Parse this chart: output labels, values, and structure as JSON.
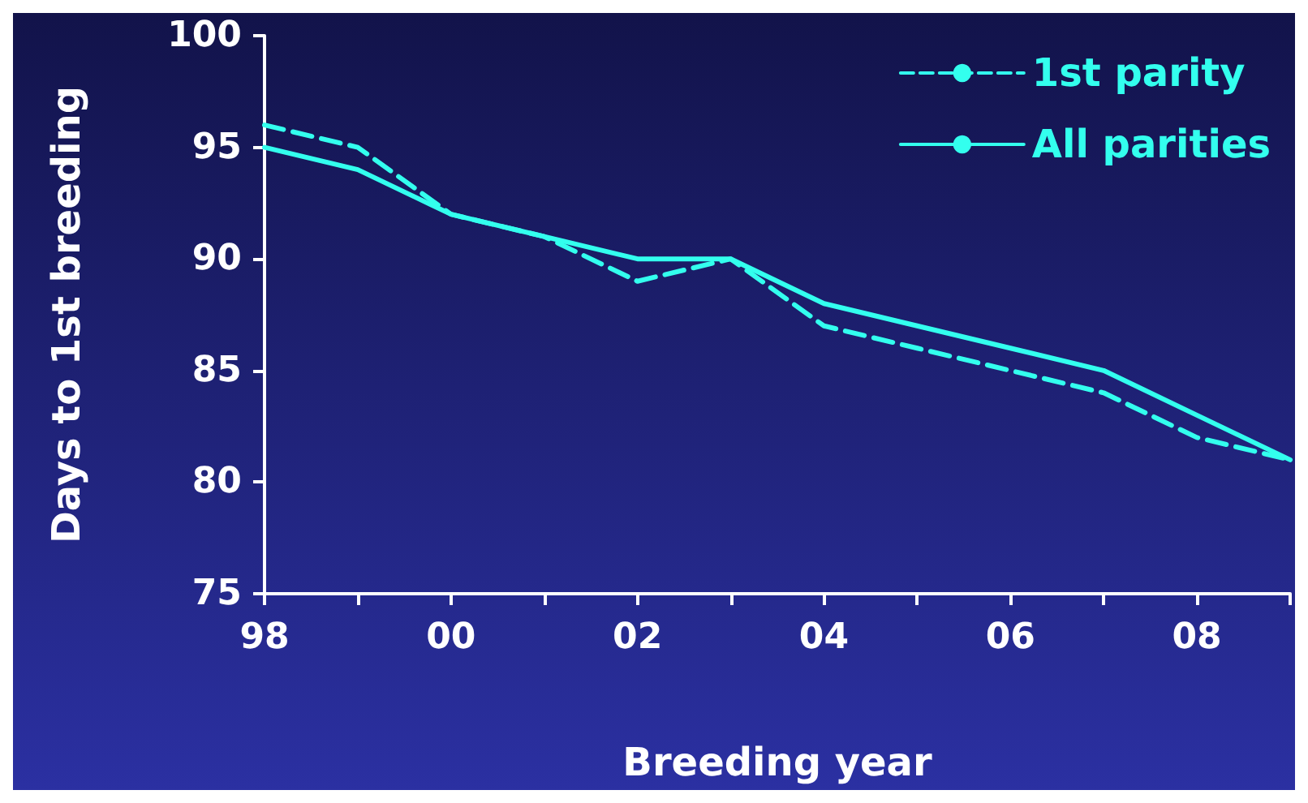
{
  "chart_data": {
    "type": "line",
    "xlabel": "Breeding year",
    "ylabel": "Days to 1st breeding",
    "categories": [
      "98",
      null,
      "00",
      null,
      "02",
      null,
      "04",
      null,
      "06",
      null,
      "08",
      null
    ],
    "series": [
      {
        "name": "1st parity",
        "color": "#33ffee",
        "line_style": "dashed",
        "values": [
          96,
          95,
          92,
          91,
          89,
          90,
          87,
          86,
          85,
          84,
          82,
          81
        ]
      },
      {
        "name": "All parities",
        "color": "#33ffee",
        "line_style": "solid",
        "values": [
          95,
          94,
          92,
          91,
          90,
          90,
          88,
          87,
          86,
          85,
          83,
          81
        ]
      }
    ],
    "ylim": [
      75,
      100
    ],
    "yticks": [
      75,
      80,
      85,
      90,
      95,
      100
    ],
    "grid": false,
    "legend": "top right",
    "marker": "none"
  }
}
